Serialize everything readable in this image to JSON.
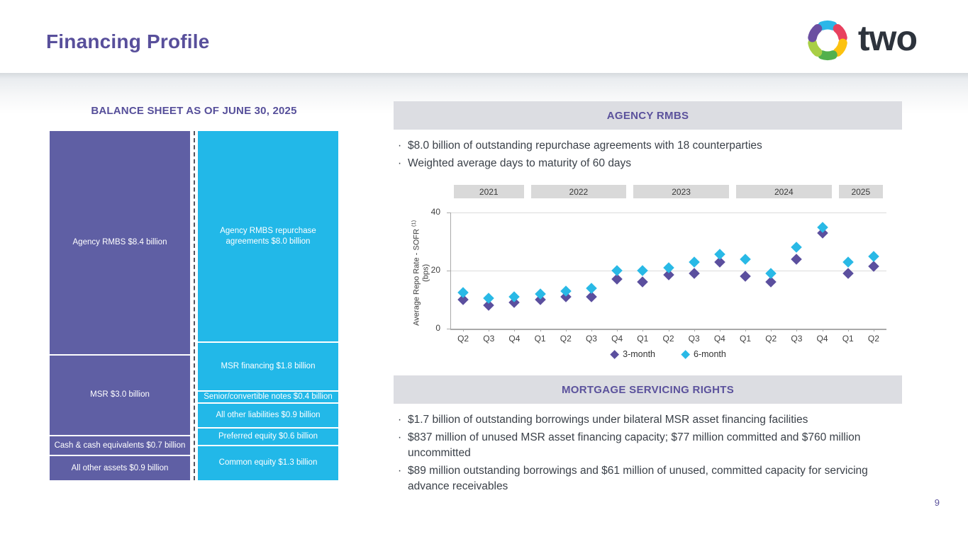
{
  "slide": {
    "title": "Financing Profile",
    "logo_text": "two",
    "page_number": "9"
  },
  "balance_sheet": {
    "title": "BALANCE SHEET AS OF JUNE 30, 2025",
    "assets_color": "#5f5fa4",
    "liabilities_color": "#22b8e8",
    "assets": [
      {
        "label": "Agency RMBS $8.4 billion",
        "value": 8.4
      },
      {
        "label": "MSR $3.0 billion",
        "value": 3.0
      },
      {
        "label": "Cash & cash equivalents $0.7 billion",
        "value": 0.7
      },
      {
        "label": "All other assets $0.9 billion",
        "value": 0.9
      }
    ],
    "liabilities_equity": [
      {
        "label": "Agency RMBS repurchase agreements $8.0 billion",
        "value": 8.0
      },
      {
        "label": "MSR financing $1.8 billion",
        "value": 1.8
      },
      {
        "label": "Senior/convertible notes $0.4 billion",
        "value": 0.4
      },
      {
        "label": "All other liabilities $0.9 billion",
        "value": 0.9
      },
      {
        "label": "Preferred equity $0.6 billion",
        "value": 0.6
      },
      {
        "label": "Common equity $1.3 billion",
        "value": 1.3
      }
    ]
  },
  "agency_rmbs": {
    "header": "AGENCY RMBS",
    "bullets": [
      "$8.0 billion of outstanding repurchase agreements with 18 counterparties",
      "Weighted average days to maturity of 60 days"
    ]
  },
  "chart_data": {
    "type": "scatter",
    "title": "",
    "ylabel": "Average Repo Rate - SOFR",
    "ylabel_footnote": "(1)",
    "ylabel_units": "(bps)",
    "ylim": [
      0,
      40
    ],
    "yticks": [
      0,
      20,
      40
    ],
    "grid": true,
    "legend_position": "bottom",
    "year_groups": [
      {
        "label": "2021",
        "quarters": 3
      },
      {
        "label": "2022",
        "quarters": 4
      },
      {
        "label": "2023",
        "quarters": 4
      },
      {
        "label": "2024",
        "quarters": 4
      },
      {
        "label": "2025",
        "quarters": 2
      }
    ],
    "x": [
      "Q2",
      "Q3",
      "Q4",
      "Q1",
      "Q2",
      "Q3",
      "Q4",
      "Q1",
      "Q2",
      "Q3",
      "Q4",
      "Q1",
      "Q2",
      "Q3",
      "Q4",
      "Q1",
      "Q2"
    ],
    "series": [
      {
        "name": "3-month",
        "color": "#5b4f9e",
        "values": [
          10,
          8,
          9,
          10,
          11,
          11,
          17,
          16,
          18.5,
          19,
          23,
          18,
          16,
          24,
          33,
          19,
          21.5
        ]
      },
      {
        "name": "6-month",
        "color": "#29b9e6",
        "values": [
          12.5,
          10.5,
          11,
          12,
          13,
          14,
          20,
          20,
          21,
          23,
          25.5,
          24,
          19,
          28,
          35,
          23,
          25
        ]
      }
    ]
  },
  "msr": {
    "header": "MORTGAGE SERVICING RIGHTS",
    "bullets": [
      "$1.7 billion of outstanding borrowings under bilateral MSR asset financing facilities",
      "$837 million of unused MSR asset financing capacity; $77 million committed and $760 million uncommitted",
      "$89 million outstanding borrowings and $61 million of unused, committed capacity for servicing advance receivables"
    ]
  }
}
